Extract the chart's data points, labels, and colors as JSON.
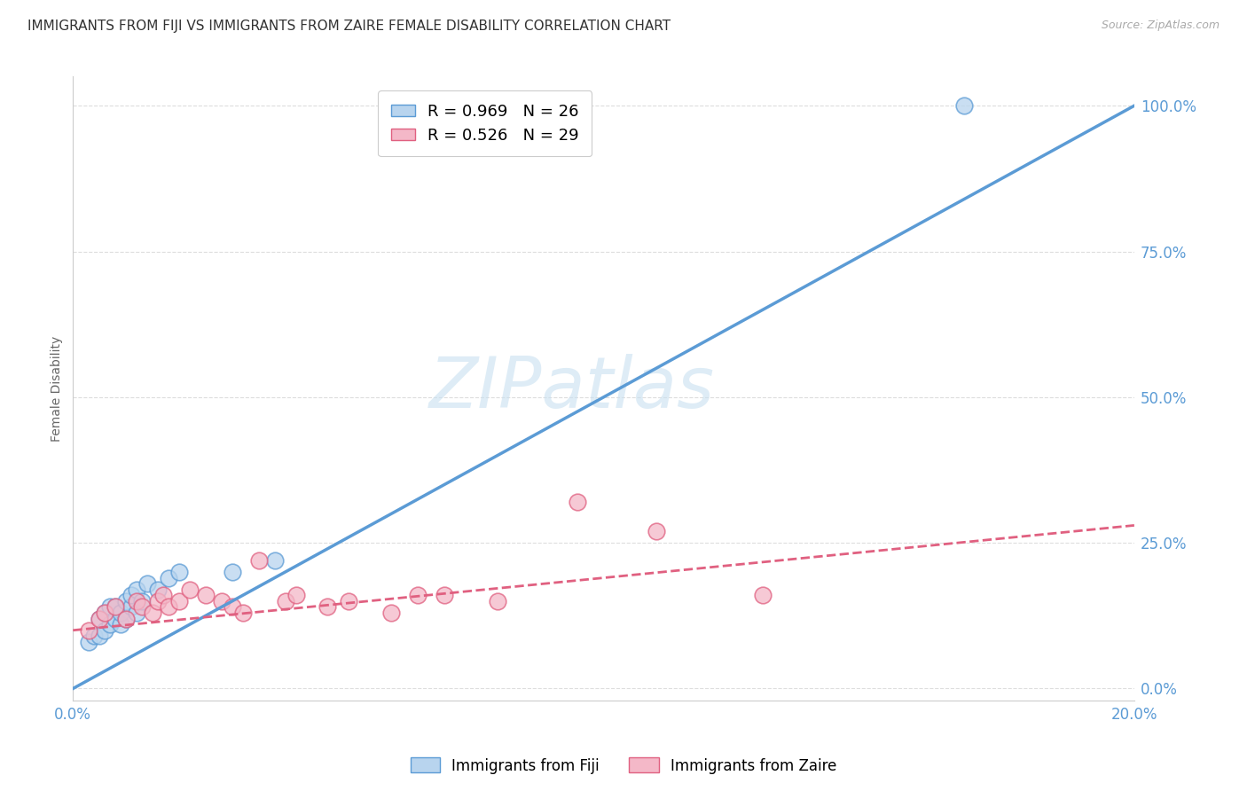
{
  "title": "IMMIGRANTS FROM FIJI VS IMMIGRANTS FROM ZAIRE FEMALE DISABILITY CORRELATION CHART",
  "source": "Source: ZipAtlas.com",
  "ylabel": "Female Disability",
  "xlim": [
    0.0,
    0.2
  ],
  "ylim": [
    -0.02,
    1.05
  ],
  "ytick_values": [
    0.0,
    0.25,
    0.5,
    0.75,
    1.0
  ],
  "ytick_labels": [
    "0.0%",
    "25.0%",
    "50.0%",
    "75.0%",
    "100.0%"
  ],
  "xtick_values": [
    0.0,
    0.04,
    0.08,
    0.12,
    0.16,
    0.2
  ],
  "xtick_labels": [
    "0.0%",
    "",
    "",
    "",
    "",
    "20.0%"
  ],
  "legend1_label": "R = 0.969   N = 26",
  "legend2_label": "R = 0.526   N = 29",
  "fiji_fill_color": "#b8d4ee",
  "fiji_edge_color": "#5b9bd5",
  "fiji_line_color": "#5b9bd5",
  "zaire_fill_color": "#f4b8c8",
  "zaire_edge_color": "#e06080",
  "zaire_line_color": "#e06080",
  "tick_color": "#5b9bd5",
  "grid_color": "#dddddd",
  "title_color": "#333333",
  "source_color": "#aaaaaa",
  "watermark_color": "#c8e0f0",
  "watermark_text": "ZIPatlas",
  "fiji_scatter_x": [
    0.003,
    0.004,
    0.005,
    0.005,
    0.006,
    0.006,
    0.007,
    0.007,
    0.008,
    0.008,
    0.009,
    0.009,
    0.01,
    0.01,
    0.011,
    0.011,
    0.012,
    0.012,
    0.013,
    0.014,
    0.016,
    0.018,
    0.02,
    0.03,
    0.038,
    0.168
  ],
  "fiji_scatter_y": [
    0.08,
    0.09,
    0.09,
    0.12,
    0.1,
    0.13,
    0.11,
    0.14,
    0.12,
    0.14,
    0.11,
    0.13,
    0.12,
    0.15,
    0.14,
    0.16,
    0.13,
    0.17,
    0.15,
    0.18,
    0.17,
    0.19,
    0.2,
    0.2,
    0.22,
    1.0
  ],
  "zaire_scatter_x": [
    0.003,
    0.005,
    0.006,
    0.008,
    0.01,
    0.012,
    0.013,
    0.015,
    0.016,
    0.017,
    0.018,
    0.02,
    0.022,
    0.025,
    0.028,
    0.03,
    0.032,
    0.035,
    0.04,
    0.042,
    0.048,
    0.052,
    0.06,
    0.065,
    0.07,
    0.08,
    0.095,
    0.11,
    0.13
  ],
  "zaire_scatter_y": [
    0.1,
    0.12,
    0.13,
    0.14,
    0.12,
    0.15,
    0.14,
    0.13,
    0.15,
    0.16,
    0.14,
    0.15,
    0.17,
    0.16,
    0.15,
    0.14,
    0.13,
    0.22,
    0.15,
    0.16,
    0.14,
    0.15,
    0.13,
    0.16,
    0.16,
    0.15,
    0.32,
    0.27,
    0.16
  ],
  "fiji_line_x": [
    0.0,
    0.2
  ],
  "fiji_line_y": [
    0.0,
    1.0
  ],
  "zaire_line_x": [
    0.0,
    0.2
  ],
  "zaire_line_y": [
    0.1,
    0.28
  ]
}
